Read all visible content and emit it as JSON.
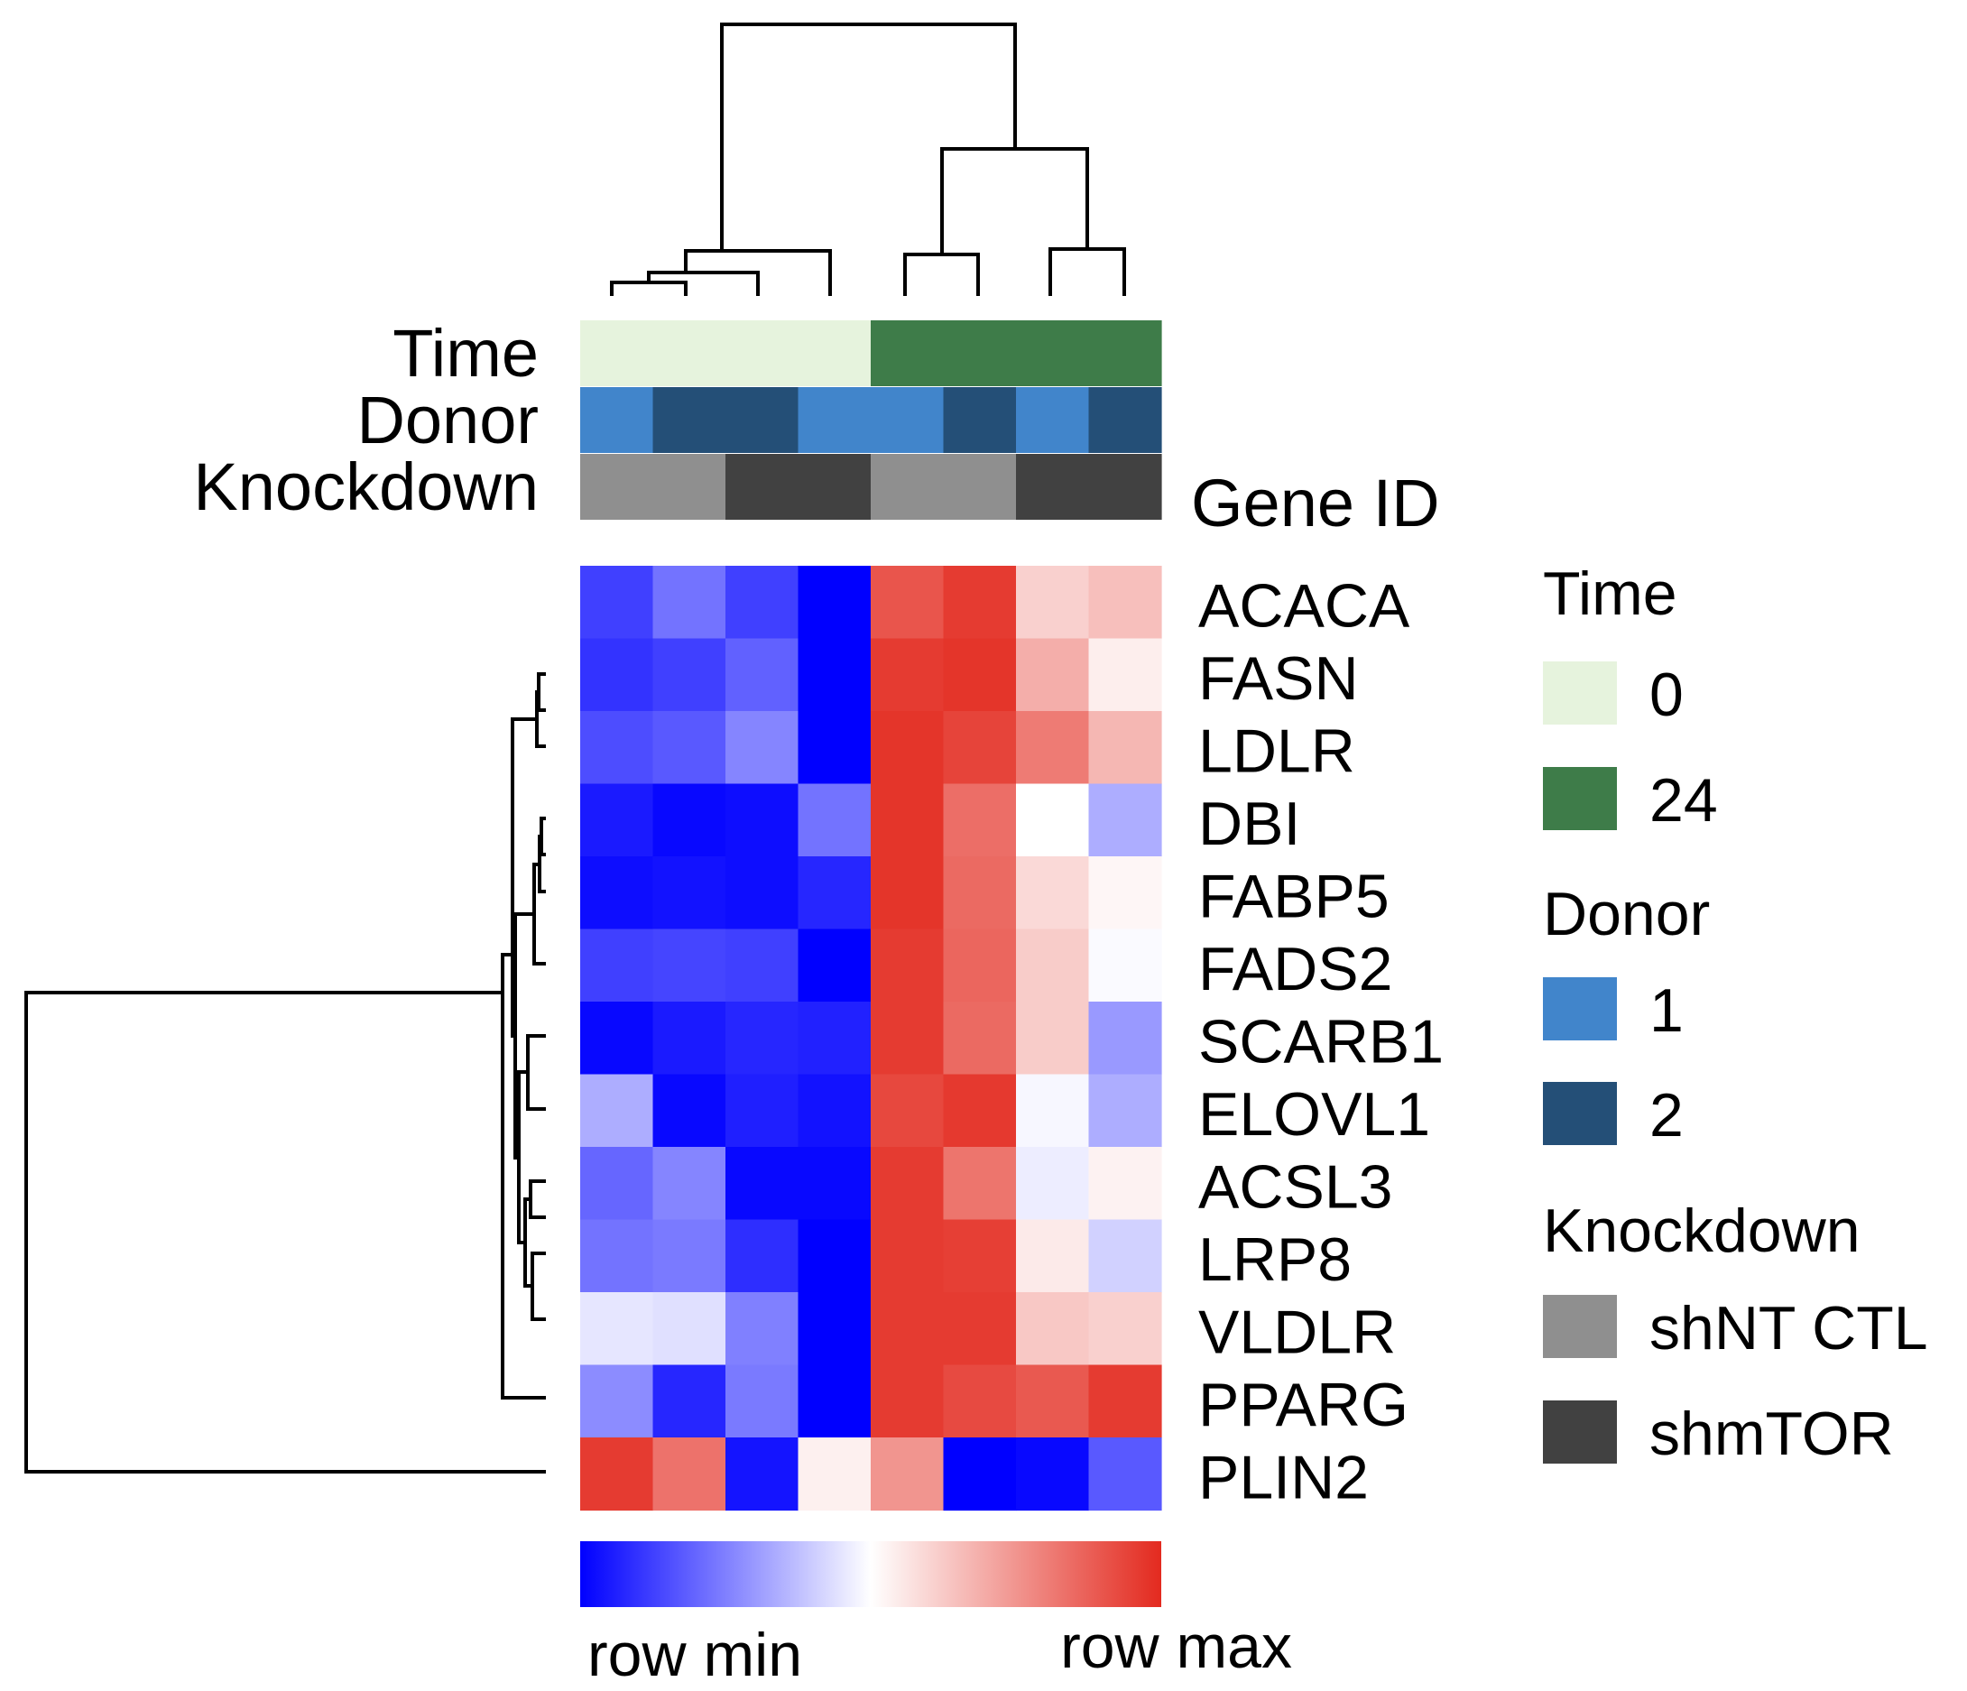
{
  "chart_data": {
    "type": "heatmap",
    "title": "",
    "value_scale": "row-normalized (row min to row max)",
    "gene_id_label": "Gene ID",
    "annotation_rows": [
      "Time",
      "Donor",
      "Knockdown"
    ],
    "columns": [
      {
        "time": "0",
        "donor": "1",
        "knockdown": "shNT CTL"
      },
      {
        "time": "0",
        "donor": "2",
        "knockdown": "shNT CTL"
      },
      {
        "time": "0",
        "donor": "2",
        "knockdown": "shmTOR"
      },
      {
        "time": "0",
        "donor": "1",
        "knockdown": "shmTOR"
      },
      {
        "time": "24",
        "donor": "1",
        "knockdown": "shNT CTL"
      },
      {
        "time": "24",
        "donor": "2",
        "knockdown": "shNT CTL"
      },
      {
        "time": "24",
        "donor": "1",
        "knockdown": "shmTOR"
      },
      {
        "time": "24",
        "donor": "2",
        "knockdown": "shmTOR"
      }
    ],
    "genes": [
      "ACACA",
      "FASN",
      "LDLR",
      "DBI",
      "FABP5",
      "FADS2",
      "SCARB1",
      "ELOVL1",
      "ACSL3",
      "LRP8",
      "VLDLR",
      "PPARG",
      "PLIN2"
    ],
    "values": [
      [
        -0.75,
        -0.55,
        -0.75,
        -1.0,
        0.8,
        0.92,
        0.22,
        0.3
      ],
      [
        -0.8,
        -0.75,
        -0.62,
        -1.0,
        0.92,
        0.95,
        0.38,
        0.08
      ],
      [
        -0.7,
        -0.65,
        -0.48,
        -1.0,
        0.95,
        0.88,
        0.62,
        0.34
      ],
      [
        -0.9,
        -0.97,
        -0.95,
        -0.55,
        0.95,
        0.68,
        0.0,
        -0.32
      ],
      [
        -0.95,
        -0.93,
        -0.95,
        -0.85,
        0.95,
        0.7,
        0.18,
        0.04
      ],
      [
        -0.75,
        -0.73,
        -0.75,
        -1.0,
        0.92,
        0.72,
        0.24,
        -0.02
      ],
      [
        -0.97,
        -0.9,
        -0.85,
        -0.87,
        0.92,
        0.7,
        0.24,
        -0.4
      ],
      [
        -0.32,
        -0.97,
        -0.88,
        -0.93,
        0.86,
        0.93,
        -0.03,
        -0.32
      ],
      [
        -0.6,
        -0.48,
        -0.97,
        -0.97,
        0.92,
        0.65,
        -0.07,
        0.06
      ],
      [
        -0.55,
        -0.52,
        -0.82,
        -1.0,
        0.92,
        0.9,
        0.1,
        -0.18
      ],
      [
        -0.1,
        -0.12,
        -0.5,
        -1.0,
        0.92,
        0.92,
        0.26,
        0.22
      ],
      [
        -0.45,
        -0.85,
        -0.52,
        -1.0,
        0.92,
        0.85,
        0.78,
        0.92
      ],
      [
        0.92,
        0.66,
        -0.92,
        0.07,
        0.5,
        -1.0,
        -0.97,
        -0.65
      ]
    ],
    "colorscale": {
      "min_color": "#0000ff",
      "mid_color": "#ffffff",
      "max_color": "#e32a1f"
    },
    "colorbar": {
      "min_label": "row min",
      "max_label": "row max"
    },
    "legend": {
      "position": "right",
      "groups": [
        {
          "title": "Time",
          "items": [
            {
              "label": "0",
              "color": "#e6f3dd"
            },
            {
              "label": "24",
              "color": "#3e7c49"
            }
          ]
        },
        {
          "title": "Donor",
          "items": [
            {
              "label": "1",
              "color": "#4185cb"
            },
            {
              "label": "2",
              "color": "#244f77"
            }
          ]
        },
        {
          "title": "Knockdown",
          "items": [
            {
              "label": "shNT CTL",
              "color": "#8f8f8f"
            },
            {
              "label": "shmTOR",
              "color": "#414141"
            }
          ]
        }
      ]
    },
    "dendrograms": {
      "columns": true,
      "rows": true
    }
  }
}
